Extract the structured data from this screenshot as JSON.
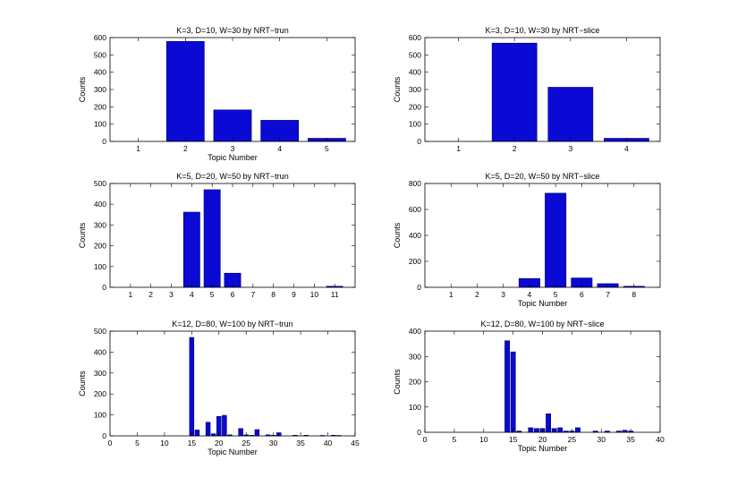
{
  "chart_data": [
    {
      "type": "bar",
      "title": "K=3, D=10, W=30 by NRT−trun",
      "xlabel": "Topic Number",
      "ylabel": "Counts",
      "x_mode": "categorical",
      "xlim": [
        0.4,
        5.6
      ],
      "ylim": [
        0,
        600
      ],
      "yticks": [
        0,
        100,
        200,
        300,
        400,
        500,
        600
      ],
      "x": [
        1,
        2,
        3,
        4,
        5
      ],
      "xtick_labels": [
        "1",
        "2",
        "3",
        "4",
        "5"
      ],
      "values": [
        0,
        578,
        182,
        122,
        18
      ],
      "bar_width": 0.8
    },
    {
      "type": "bar",
      "title": "K=3, D=10, W=30 by NRT−slice",
      "xlabel": "",
      "ylabel": "Counts",
      "x_mode": "categorical",
      "xlim": [
        0.4,
        4.6
      ],
      "ylim": [
        0,
        600
      ],
      "yticks": [
        0,
        100,
        200,
        300,
        400,
        500,
        600
      ],
      "x": [
        1,
        2,
        3,
        4
      ],
      "xtick_labels": [
        "1",
        "2",
        "3",
        "4"
      ],
      "values": [
        0,
        568,
        313,
        18
      ],
      "bar_width": 0.8
    },
    {
      "type": "bar",
      "title": "K=5, D=20, W=50 by NRT−trun",
      "xlabel": "",
      "ylabel": "Counts",
      "x_mode": "categorical",
      "xlim": [
        0,
        12
      ],
      "ylim": [
        0,
        500
      ],
      "yticks": [
        0,
        100,
        200,
        300,
        400,
        500
      ],
      "x": [
        1,
        2,
        3,
        4,
        5,
        6,
        7,
        8,
        9,
        10,
        11
      ],
      "xtick_labels": [
        "1",
        "2",
        "3",
        "4",
        "5",
        "6",
        "7",
        "8",
        "9",
        "10",
        "11"
      ],
      "values": [
        0,
        0,
        0,
        362,
        470,
        68,
        0,
        0,
        0,
        0,
        5
      ],
      "bar_width": 0.8
    },
    {
      "type": "bar",
      "title": "K=5, D=20, W=50 by NRT−slice",
      "xlabel": "Topic Number",
      "ylabel": "Counts",
      "x_mode": "categorical",
      "xlim": [
        0,
        9
      ],
      "ylim": [
        0,
        800
      ],
      "yticks": [
        0,
        200,
        400,
        600,
        800
      ],
      "x": [
        1,
        2,
        3,
        4,
        5,
        6,
        7,
        8
      ],
      "xtick_labels": [
        "1",
        "2",
        "3",
        "4",
        "5",
        "6",
        "7",
        "8"
      ],
      "values": [
        0,
        0,
        0,
        68,
        725,
        72,
        28,
        8
      ],
      "bar_width": 0.8
    },
    {
      "type": "bar",
      "title": "K=12, D=80, W=100 by NRT−trun",
      "xlabel": "Topic Number",
      "ylabel": "Counts",
      "x_mode": "numeric",
      "xlim": [
        0,
        45
      ],
      "ylim": [
        0,
        500
      ],
      "yticks": [
        0,
        100,
        200,
        300,
        400,
        500
      ],
      "xticks": [
        0,
        5,
        10,
        15,
        20,
        25,
        30,
        35,
        40,
        45
      ],
      "x": [
        15,
        16,
        18,
        19,
        20,
        21,
        22,
        24,
        25,
        26,
        27,
        29,
        30,
        31,
        34,
        36,
        39,
        41,
        42
      ],
      "values": [
        470,
        28,
        65,
        10,
        93,
        98,
        5,
        35,
        5,
        3,
        30,
        5,
        3,
        15,
        3,
        3,
        2,
        3,
        2
      ],
      "bar_width": 0.8
    },
    {
      "type": "bar",
      "title": "K=12, D=80, W=100 by NRT−slice",
      "xlabel": "Topic Number",
      "ylabel": "Counts",
      "x_mode": "numeric",
      "xlim": [
        0,
        40
      ],
      "ylim": [
        0,
        400
      ],
      "yticks": [
        0,
        100,
        200,
        300,
        400
      ],
      "xticks": [
        0,
        5,
        10,
        15,
        20,
        25,
        30,
        35,
        40
      ],
      "x": [
        14,
        15,
        16,
        18,
        19,
        20,
        21,
        22,
        23,
        24,
        25,
        26,
        29,
        31,
        33,
        34,
        35
      ],
      "values": [
        362,
        318,
        5,
        18,
        15,
        15,
        73,
        15,
        18,
        5,
        5,
        18,
        5,
        5,
        5,
        8,
        5
      ],
      "bar_width": 0.8
    }
  ]
}
